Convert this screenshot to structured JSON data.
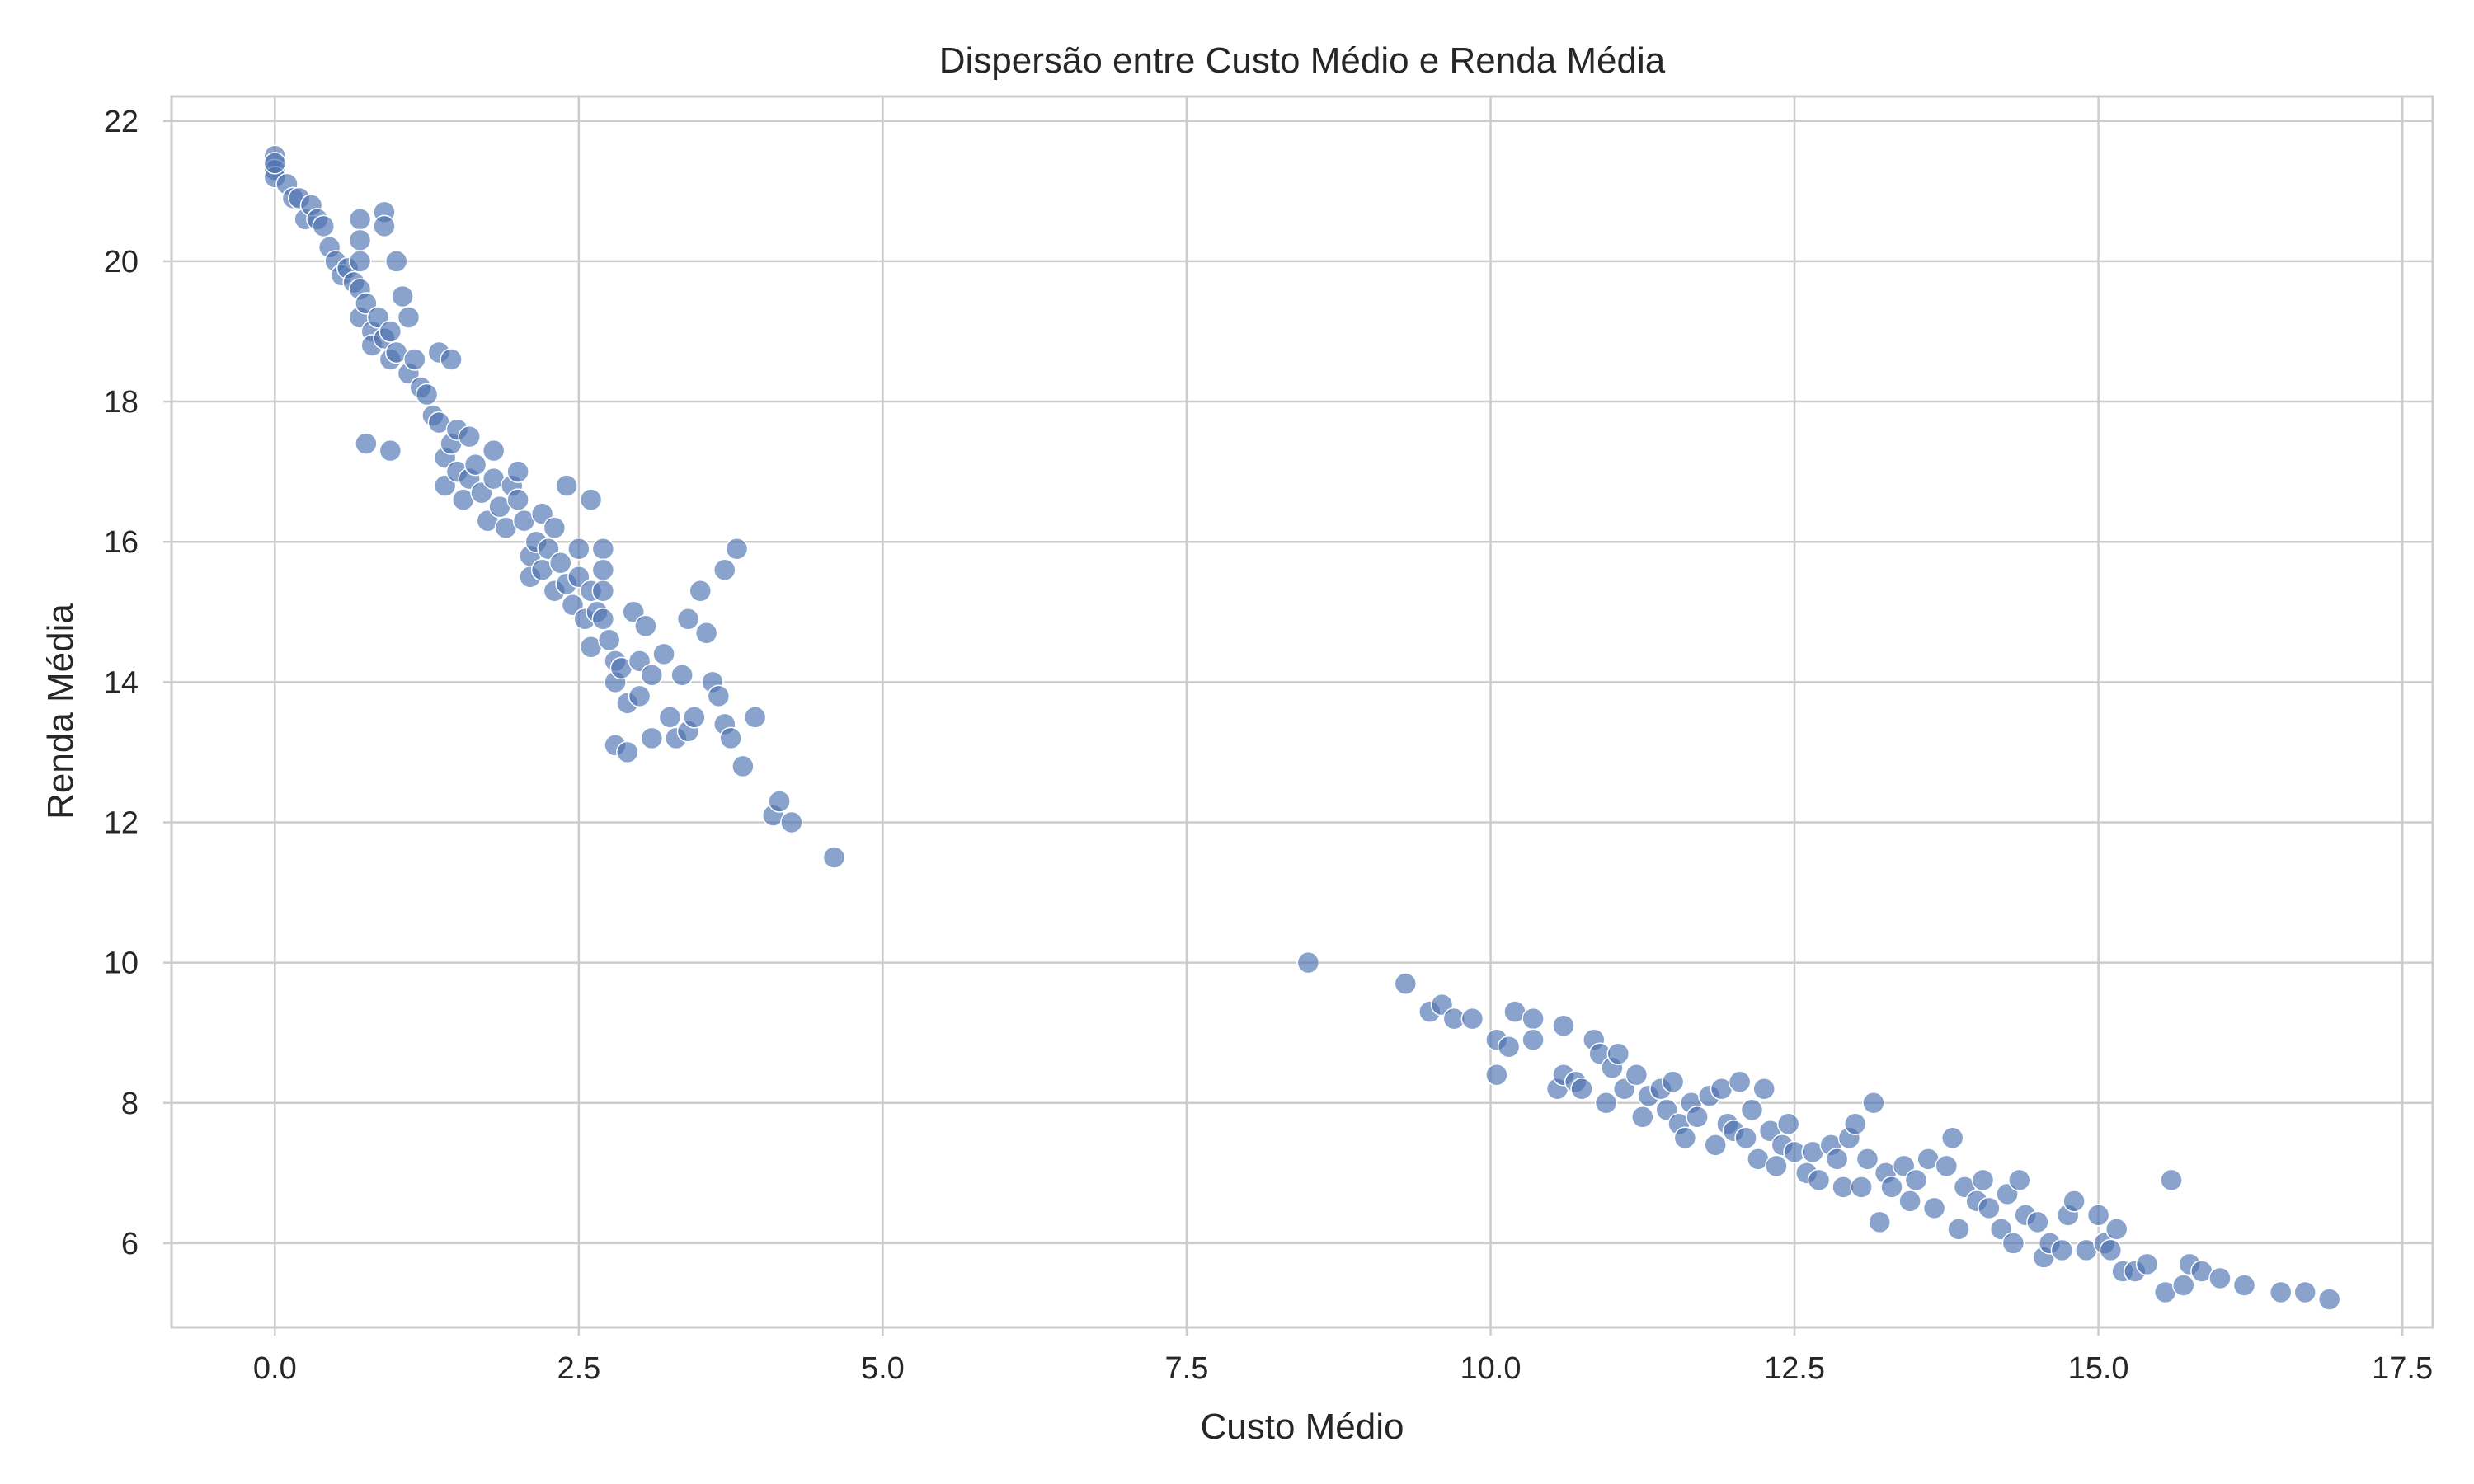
{
  "chart_data": {
    "type": "scatter",
    "title": "Dispersão entre Custo Médio e Renda Média",
    "xlabel": "Custo Médio",
    "ylabel": "Renda Média",
    "xlim": [
      -0.85,
      17.75
    ],
    "ylim": [
      4.8,
      22.35
    ],
    "xticks": [
      0.0,
      2.5,
      5.0,
      7.5,
      10.0,
      12.5,
      15.0,
      17.5
    ],
    "xtick_labels": [
      "0.0",
      "2.5",
      "5.0",
      "7.5",
      "10.0",
      "12.5",
      "15.0",
      "17.5"
    ],
    "yticks": [
      6,
      8,
      10,
      12,
      14,
      16,
      18,
      20,
      22
    ],
    "ytick_labels": [
      "6",
      "8",
      "10",
      "12",
      "14",
      "16",
      "18",
      "20",
      "22"
    ],
    "grid": true,
    "marker_color": "#4c72b0",
    "marker_alpha": 0.65,
    "series": [
      {
        "points": [
          [
            0.0,
            21.5
          ],
          [
            0.0,
            21.3
          ],
          [
            0.0,
            21.2
          ],
          [
            0.0,
            21.4
          ],
          [
            0.1,
            21.1
          ],
          [
            0.15,
            20.9
          ],
          [
            0.2,
            20.9
          ],
          [
            0.25,
            20.6
          ],
          [
            0.3,
            20.8
          ],
          [
            0.35,
            20.6
          ],
          [
            0.4,
            20.5
          ],
          [
            0.45,
            20.2
          ],
          [
            0.5,
            20.0
          ],
          [
            0.55,
            19.8
          ],
          [
            0.6,
            19.9
          ],
          [
            0.65,
            19.7
          ],
          [
            0.7,
            20.6
          ],
          [
            0.7,
            20.3
          ],
          [
            0.7,
            20.0
          ],
          [
            0.7,
            19.6
          ],
          [
            0.7,
            19.2
          ],
          [
            0.75,
            19.4
          ],
          [
            0.8,
            19.0
          ],
          [
            0.8,
            18.8
          ],
          [
            0.85,
            19.2
          ],
          [
            0.9,
            20.7
          ],
          [
            0.9,
            20.5
          ],
          [
            0.9,
            18.9
          ],
          [
            0.95,
            18.6
          ],
          [
            0.95,
            19.0
          ],
          [
            1.0,
            18.7
          ],
          [
            1.0,
            20.0
          ],
          [
            1.05,
            19.5
          ],
          [
            1.1,
            19.2
          ],
          [
            1.1,
            18.4
          ],
          [
            1.15,
            18.6
          ],
          [
            1.2,
            18.2
          ],
          [
            1.25,
            18.1
          ],
          [
            1.3,
            17.8
          ],
          [
            1.35,
            18.7
          ],
          [
            1.35,
            17.7
          ],
          [
            1.4,
            17.2
          ],
          [
            1.4,
            16.8
          ],
          [
            1.45,
            17.4
          ],
          [
            1.45,
            18.6
          ],
          [
            1.5,
            17.6
          ],
          [
            1.5,
            17.0
          ],
          [
            1.55,
            16.6
          ],
          [
            1.6,
            17.5
          ],
          [
            1.6,
            16.9
          ],
          [
            1.65,
            17.1
          ],
          [
            1.7,
            16.7
          ],
          [
            1.75,
            16.3
          ],
          [
            1.8,
            16.9
          ],
          [
            1.8,
            17.3
          ],
          [
            1.85,
            16.5
          ],
          [
            1.9,
            16.2
          ],
          [
            1.95,
            16.8
          ],
          [
            2.0,
            16.6
          ],
          [
            2.0,
            17.0
          ],
          [
            2.05,
            16.3
          ],
          [
            2.1,
            15.8
          ],
          [
            2.1,
            15.5
          ],
          [
            2.15,
            16.0
          ],
          [
            2.2,
            16.4
          ],
          [
            2.2,
            15.6
          ],
          [
            2.25,
            15.9
          ],
          [
            2.3,
            15.3
          ],
          [
            2.3,
            16.2
          ],
          [
            2.35,
            15.7
          ],
          [
            2.4,
            15.4
          ],
          [
            2.4,
            16.8
          ],
          [
            2.45,
            15.1
          ],
          [
            2.5,
            15.9
          ],
          [
            2.5,
            15.5
          ],
          [
            2.55,
            14.9
          ],
          [
            2.6,
            15.3
          ],
          [
            2.6,
            14.5
          ],
          [
            2.6,
            16.6
          ],
          [
            2.65,
            15.0
          ],
          [
            2.7,
            15.9
          ],
          [
            2.7,
            15.6
          ],
          [
            2.7,
            15.3
          ],
          [
            2.7,
            14.9
          ],
          [
            2.75,
            14.6
          ],
          [
            2.8,
            14.3
          ],
          [
            2.8,
            14.0
          ],
          [
            2.8,
            13.1
          ],
          [
            2.85,
            14.2
          ],
          [
            2.9,
            13.7
          ],
          [
            2.9,
            13.0
          ],
          [
            2.95,
            15.0
          ],
          [
            3.0,
            14.3
          ],
          [
            3.0,
            13.8
          ],
          [
            3.05,
            14.8
          ],
          [
            3.1,
            14.1
          ],
          [
            3.1,
            13.2
          ],
          [
            3.2,
            14.4
          ],
          [
            3.25,
            13.5
          ],
          [
            3.3,
            13.2
          ],
          [
            3.35,
            14.1
          ],
          [
            3.4,
            14.9
          ],
          [
            3.4,
            13.3
          ],
          [
            3.45,
            13.5
          ],
          [
            3.5,
            15.3
          ],
          [
            3.55,
            14.7
          ],
          [
            3.6,
            14.0
          ],
          [
            3.65,
            13.8
          ],
          [
            3.7,
            15.6
          ],
          [
            3.7,
            13.4
          ],
          [
            3.75,
            13.2
          ],
          [
            3.8,
            15.9
          ],
          [
            3.85,
            12.8
          ],
          [
            3.95,
            13.5
          ],
          [
            4.1,
            12.1
          ],
          [
            4.15,
            12.3
          ],
          [
            4.25,
            12.0
          ],
          [
            4.6,
            11.5
          ],
          [
            0.75,
            17.4
          ],
          [
            0.95,
            17.3
          ],
          [
            8.5,
            10.0
          ],
          [
            9.3,
            9.7
          ],
          [
            9.5,
            9.3
          ],
          [
            9.6,
            9.4
          ],
          [
            9.7,
            9.2
          ],
          [
            9.85,
            9.2
          ],
          [
            10.05,
            8.9
          ],
          [
            10.05,
            8.4
          ],
          [
            10.15,
            8.8
          ],
          [
            10.2,
            9.3
          ],
          [
            10.35,
            9.2
          ],
          [
            10.35,
            8.9
          ],
          [
            10.55,
            8.2
          ],
          [
            10.6,
            8.4
          ],
          [
            10.6,
            9.1
          ],
          [
            10.7,
            8.3
          ],
          [
            10.75,
            8.2
          ],
          [
            10.85,
            8.9
          ],
          [
            10.9,
            8.7
          ],
          [
            10.95,
            8.0
          ],
          [
            11.0,
            8.5
          ],
          [
            11.05,
            8.7
          ],
          [
            11.1,
            8.2
          ],
          [
            11.2,
            8.4
          ],
          [
            11.25,
            7.8
          ],
          [
            11.3,
            8.1
          ],
          [
            11.4,
            8.2
          ],
          [
            11.45,
            7.9
          ],
          [
            11.5,
            8.3
          ],
          [
            11.55,
            7.7
          ],
          [
            11.6,
            7.5
          ],
          [
            11.65,
            8.0
          ],
          [
            11.7,
            7.8
          ],
          [
            11.8,
            8.1
          ],
          [
            11.85,
            7.4
          ],
          [
            11.9,
            8.2
          ],
          [
            11.95,
            7.7
          ],
          [
            12.0,
            7.6
          ],
          [
            12.05,
            8.3
          ],
          [
            12.1,
            7.5
          ],
          [
            12.15,
            7.9
          ],
          [
            12.2,
            7.2
          ],
          [
            12.25,
            8.2
          ],
          [
            12.3,
            7.6
          ],
          [
            12.35,
            7.1
          ],
          [
            12.4,
            7.4
          ],
          [
            12.45,
            7.7
          ],
          [
            12.5,
            7.3
          ],
          [
            12.6,
            7.0
          ],
          [
            12.65,
            7.3
          ],
          [
            12.7,
            6.9
          ],
          [
            12.8,
            7.4
          ],
          [
            12.85,
            7.2
          ],
          [
            12.9,
            6.8
          ],
          [
            12.95,
            7.5
          ],
          [
            13.0,
            7.7
          ],
          [
            13.05,
            6.8
          ],
          [
            13.1,
            7.2
          ],
          [
            13.15,
            8.0
          ],
          [
            13.2,
            6.3
          ],
          [
            13.25,
            7.0
          ],
          [
            13.3,
            6.8
          ],
          [
            13.4,
            7.1
          ],
          [
            13.45,
            6.6
          ],
          [
            13.5,
            6.9
          ],
          [
            13.6,
            7.2
          ],
          [
            13.65,
            6.5
          ],
          [
            13.75,
            7.1
          ],
          [
            13.8,
            7.5
          ],
          [
            13.85,
            6.2
          ],
          [
            13.9,
            6.8
          ],
          [
            14.0,
            6.6
          ],
          [
            14.05,
            6.9
          ],
          [
            14.1,
            6.5
          ],
          [
            14.2,
            6.2
          ],
          [
            14.25,
            6.7
          ],
          [
            14.3,
            6.0
          ],
          [
            14.35,
            6.9
          ],
          [
            14.4,
            6.4
          ],
          [
            14.5,
            6.3
          ],
          [
            14.55,
            5.8
          ],
          [
            14.6,
            6.0
          ],
          [
            14.7,
            5.9
          ],
          [
            14.75,
            6.4
          ],
          [
            14.8,
            6.6
          ],
          [
            14.9,
            5.9
          ],
          [
            15.0,
            6.4
          ],
          [
            15.05,
            6.0
          ],
          [
            15.1,
            5.9
          ],
          [
            15.15,
            6.2
          ],
          [
            15.2,
            5.6
          ],
          [
            15.3,
            5.6
          ],
          [
            15.4,
            5.7
          ],
          [
            15.55,
            5.3
          ],
          [
            15.6,
            6.9
          ],
          [
            15.7,
            5.4
          ],
          [
            15.75,
            5.7
          ],
          [
            15.85,
            5.6
          ],
          [
            16.0,
            5.5
          ],
          [
            16.2,
            5.4
          ],
          [
            16.5,
            5.3
          ],
          [
            16.7,
            5.3
          ],
          [
            16.9,
            5.2
          ]
        ]
      }
    ]
  }
}
